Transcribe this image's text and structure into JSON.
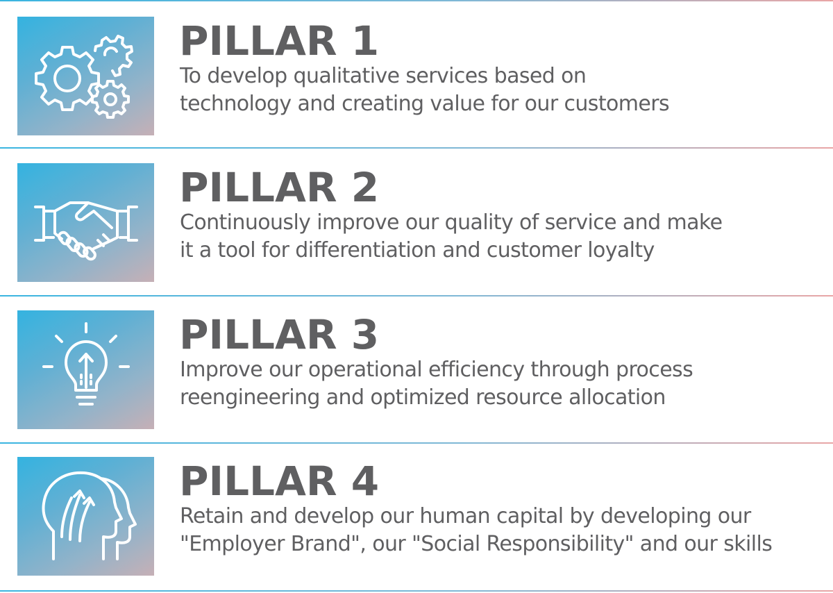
{
  "colors": {
    "title_text": "#5f5f61",
    "body_text": "#5f5f61",
    "rule_start": "#3ab5e0",
    "rule_end": "#e9a6a6",
    "icon_gradient_start": "#34b3e0",
    "icon_gradient_end": "#c6b0b6",
    "icon_stroke": "#ffffff"
  },
  "pillars": [
    {
      "title": "PILLAR 1",
      "icon": "gears-icon",
      "lines": [
        "To develop qualitative services based on",
        "technology and creating value for our customers"
      ]
    },
    {
      "title": "PILLAR 2",
      "icon": "handshake-icon",
      "lines": [
        "Continuously improve our quality of service and make",
        "it a tool for differentiation and customer loyalty"
      ]
    },
    {
      "title": "PILLAR 3",
      "icon": "lightbulb-icon",
      "lines": [
        "Improve our operational efficiency through process",
        "reengineering and optimized resource allocation"
      ]
    },
    {
      "title": "PILLAR 4",
      "icon": "human-head-growth-icon",
      "lines": [
        "Retain and develop our human capital by developing our",
        "\"Employer Brand\", our \"Social Responsibility\" and our skills"
      ]
    }
  ]
}
